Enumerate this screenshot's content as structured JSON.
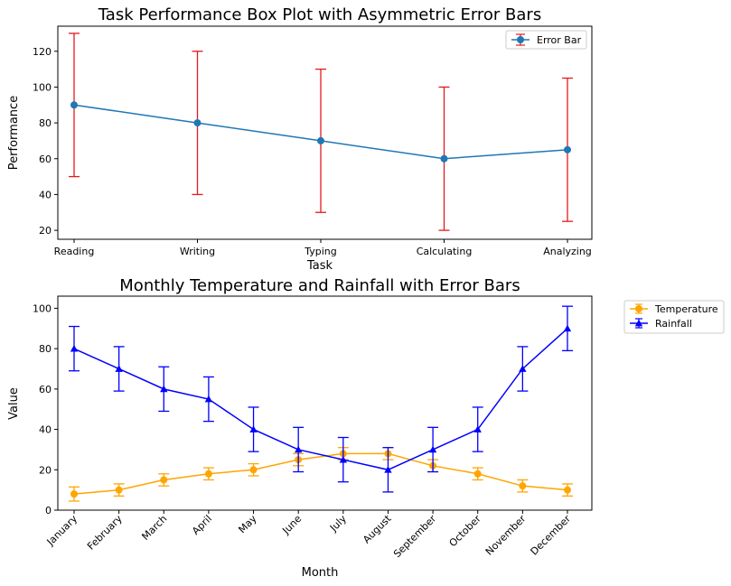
{
  "chart_data": [
    {
      "type": "line",
      "title": "Task Performance Box Plot with Asymmetric Error Bars",
      "xlabel": "Task",
      "ylabel": "Performance",
      "categories": [
        "Reading",
        "Writing",
        "Typing",
        "Calculating",
        "Analyzing"
      ],
      "series": [
        {
          "name": "Error Bar",
          "values": [
            90,
            80,
            70,
            60,
            65
          ],
          "err_low": [
            40,
            40,
            40,
            40,
            40
          ],
          "err_high": [
            40,
            40,
            40,
            40,
            40
          ],
          "color": "#1f77b4",
          "ecolor": "#e41a1c",
          "marker": "circle"
        }
      ],
      "ylim": [
        15,
        134
      ],
      "yticks": [
        20,
        40,
        60,
        80,
        100,
        120
      ],
      "grid": false,
      "legend": "top-right"
    },
    {
      "type": "line",
      "title": "Monthly Temperature and Rainfall with Error Bars",
      "xlabel": "Month",
      "ylabel": "Value",
      "categories": [
        "January",
        "February",
        "March",
        "April",
        "May",
        "June",
        "July",
        "August",
        "September",
        "October",
        "November",
        "December"
      ],
      "series": [
        {
          "name": "Temperature",
          "values": [
            8,
            10,
            15,
            18,
            20,
            25,
            28,
            28,
            22,
            18,
            12,
            10
          ],
          "errors": [
            3.5,
            3,
            3,
            3,
            3,
            3,
            3,
            3,
            3,
            3,
            3,
            3
          ],
          "color": "#ffa500",
          "marker": "circle"
        },
        {
          "name": "Rainfall",
          "values": [
            80,
            70,
            60,
            55,
            40,
            30,
            25,
            20,
            30,
            40,
            70,
            90
          ],
          "errors": [
            11,
            11,
            11,
            11,
            11,
            11,
            11,
            11,
            11,
            11,
            11,
            11
          ],
          "color": "#0000ff",
          "marker": "triangle"
        }
      ],
      "ylim": [
        0,
        106
      ],
      "yticks": [
        0,
        20,
        40,
        60,
        80,
        100
      ],
      "grid": false,
      "legend": "outside-top-right"
    }
  ]
}
